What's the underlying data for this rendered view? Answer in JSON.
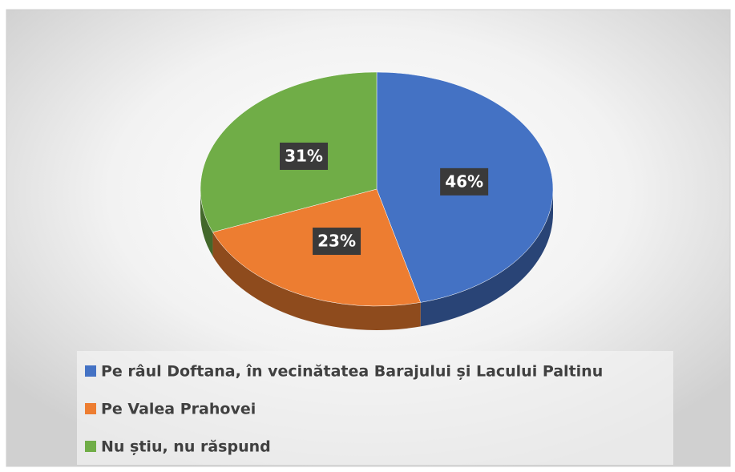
{
  "chart_data": {
    "type": "pie",
    "categories": [
      "Pe râul Doftana, în vecinătatea Barajului și Lacului Paltinu",
      "Pe Valea Prahovei",
      "Nu știu, nu răspund"
    ],
    "values": [
      46,
      23,
      31
    ],
    "value_labels": [
      "46%",
      "23%",
      "31%"
    ],
    "colors": [
      "#4472c4",
      "#ed7d31",
      "#70ad47"
    ],
    "legend": "bottom"
  }
}
